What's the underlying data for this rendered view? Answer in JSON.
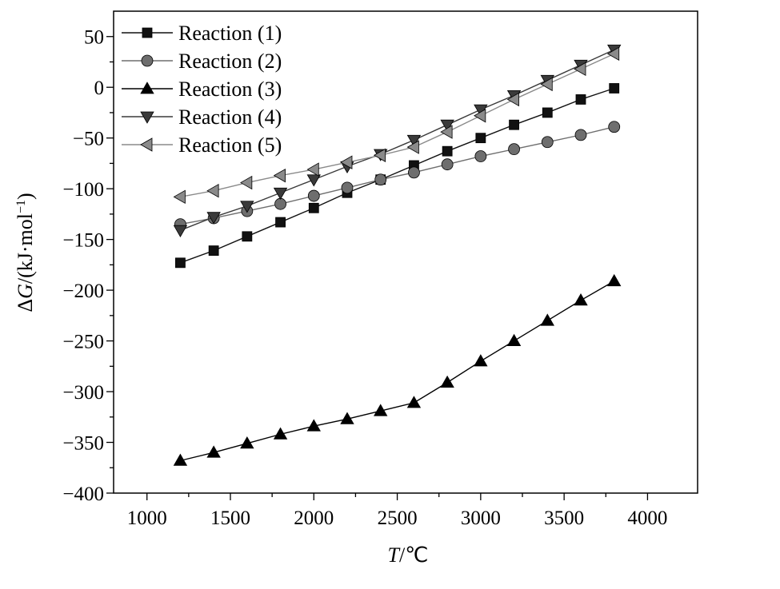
{
  "chart_data": {
    "type": "line",
    "xlabel_var": "T",
    "xlabel_unit": "/℃",
    "ylabel_prefix": "Δ",
    "ylabel_var": "G",
    "ylabel_unit": "/(kJ·mol",
    "ylabel_sup": "−1",
    "ylabel_close": ")",
    "xlim": [
      800,
      4300
    ],
    "ylim": [
      -400,
      75
    ],
    "x_ticks": [
      1000,
      1500,
      2000,
      2500,
      3000,
      3500,
      4000
    ],
    "y_ticks": [
      50,
      0,
      -50,
      -100,
      -150,
      -200,
      -250,
      -300,
      -350,
      -400
    ],
    "y_tick_labels": [
      "50",
      "0",
      "−50",
      "−100",
      "−150",
      "−200",
      "−250",
      "−300",
      "−350",
      "−400"
    ],
    "grid": false,
    "legend_position": "top-left",
    "x": [
      1200,
      1400,
      1600,
      1800,
      2000,
      2200,
      2400,
      2600,
      2800,
      3000,
      3200,
      3400,
      3600,
      3800
    ],
    "series": [
      {
        "name": "Reaction (1)",
        "marker": "square",
        "color": "#111111",
        "values": [
          -173,
          -161,
          -147,
          -133,
          -119,
          -104,
          -91,
          -77,
          -63,
          -50,
          -37,
          -25,
          -12,
          -1
        ]
      },
      {
        "name": "Reaction (2)",
        "marker": "circle",
        "color": "#6e6e6e",
        "values": [
          -135,
          -129,
          -122,
          -115,
          -107,
          -99,
          -91,
          -84,
          -76,
          -68,
          -61,
          -54,
          -47,
          -39
        ]
      },
      {
        "name": "Reaction (3)",
        "marker": "triangle-up",
        "color": "#000000",
        "values": [
          -368,
          -360,
          -351,
          -342,
          -334,
          -327,
          -319,
          -311,
          -291,
          -270,
          -250,
          -230,
          -210,
          -191
        ]
      },
      {
        "name": "Reaction (4)",
        "marker": "triangle-down",
        "color": "#3a3a3a",
        "values": [
          -141,
          -128,
          -117,
          -104,
          -91,
          -78,
          -66,
          -52,
          -37,
          -22,
          -8,
          7,
          22,
          37
        ]
      },
      {
        "name": "Reaction (5)",
        "marker": "triangle-left",
        "color": "#8a8a8a",
        "values": [
          -108,
          -102,
          -94,
          -87,
          -81,
          -74,
          -67,
          -59,
          -44,
          -28,
          -12,
          3,
          18,
          33
        ]
      }
    ]
  }
}
